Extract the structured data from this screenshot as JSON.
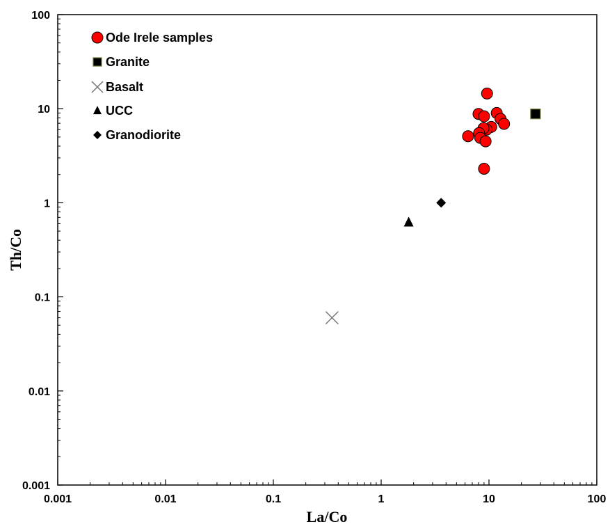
{
  "chart_data": {
    "type": "scatter",
    "title": "",
    "xlabel": "La/Co",
    "ylabel": "Th/Co",
    "xscale": "log",
    "yscale": "log",
    "xlim": [
      0.001,
      100
    ],
    "ylim": [
      0.001,
      100
    ],
    "x_ticks": [
      "0.001",
      "0.01",
      "0.1",
      "1",
      "10",
      "100"
    ],
    "y_ticks": [
      "0.001",
      "0.01",
      "0.1",
      "1",
      "10",
      "100"
    ],
    "grid": false,
    "legend_position": "top-left",
    "series": [
      {
        "name": "Ode Irele samples",
        "marker": "circle",
        "color": "#ff0000",
        "points": [
          {
            "x": 9.6,
            "y": 14.5
          },
          {
            "x": 8.0,
            "y": 8.8
          },
          {
            "x": 9.0,
            "y": 8.3
          },
          {
            "x": 11.8,
            "y": 9.0
          },
          {
            "x": 12.8,
            "y": 7.8
          },
          {
            "x": 13.8,
            "y": 6.9
          },
          {
            "x": 10.5,
            "y": 6.4
          },
          {
            "x": 9.5,
            "y": 6.0
          },
          {
            "x": 8.9,
            "y": 6.2
          },
          {
            "x": 8.1,
            "y": 5.5
          },
          {
            "x": 8.3,
            "y": 4.9
          },
          {
            "x": 6.4,
            "y": 5.1
          },
          {
            "x": 9.3,
            "y": 4.5
          },
          {
            "x": 9.0,
            "y": 2.3
          }
        ]
      },
      {
        "name": "Granite",
        "marker": "square",
        "color": "#000000",
        "points": [
          {
            "x": 27,
            "y": 8.8
          }
        ]
      },
      {
        "name": "Basalt",
        "marker": "x",
        "color": "#777777",
        "points": [
          {
            "x": 0.35,
            "y": 0.06
          }
        ]
      },
      {
        "name": "UCC",
        "marker": "triangle",
        "color": "#000000",
        "points": [
          {
            "x": 1.8,
            "y": 0.62
          }
        ]
      },
      {
        "name": "Granodiorite",
        "marker": "diamond",
        "color": "#000000",
        "points": [
          {
            "x": 3.6,
            "y": 1.0
          }
        ]
      }
    ]
  }
}
